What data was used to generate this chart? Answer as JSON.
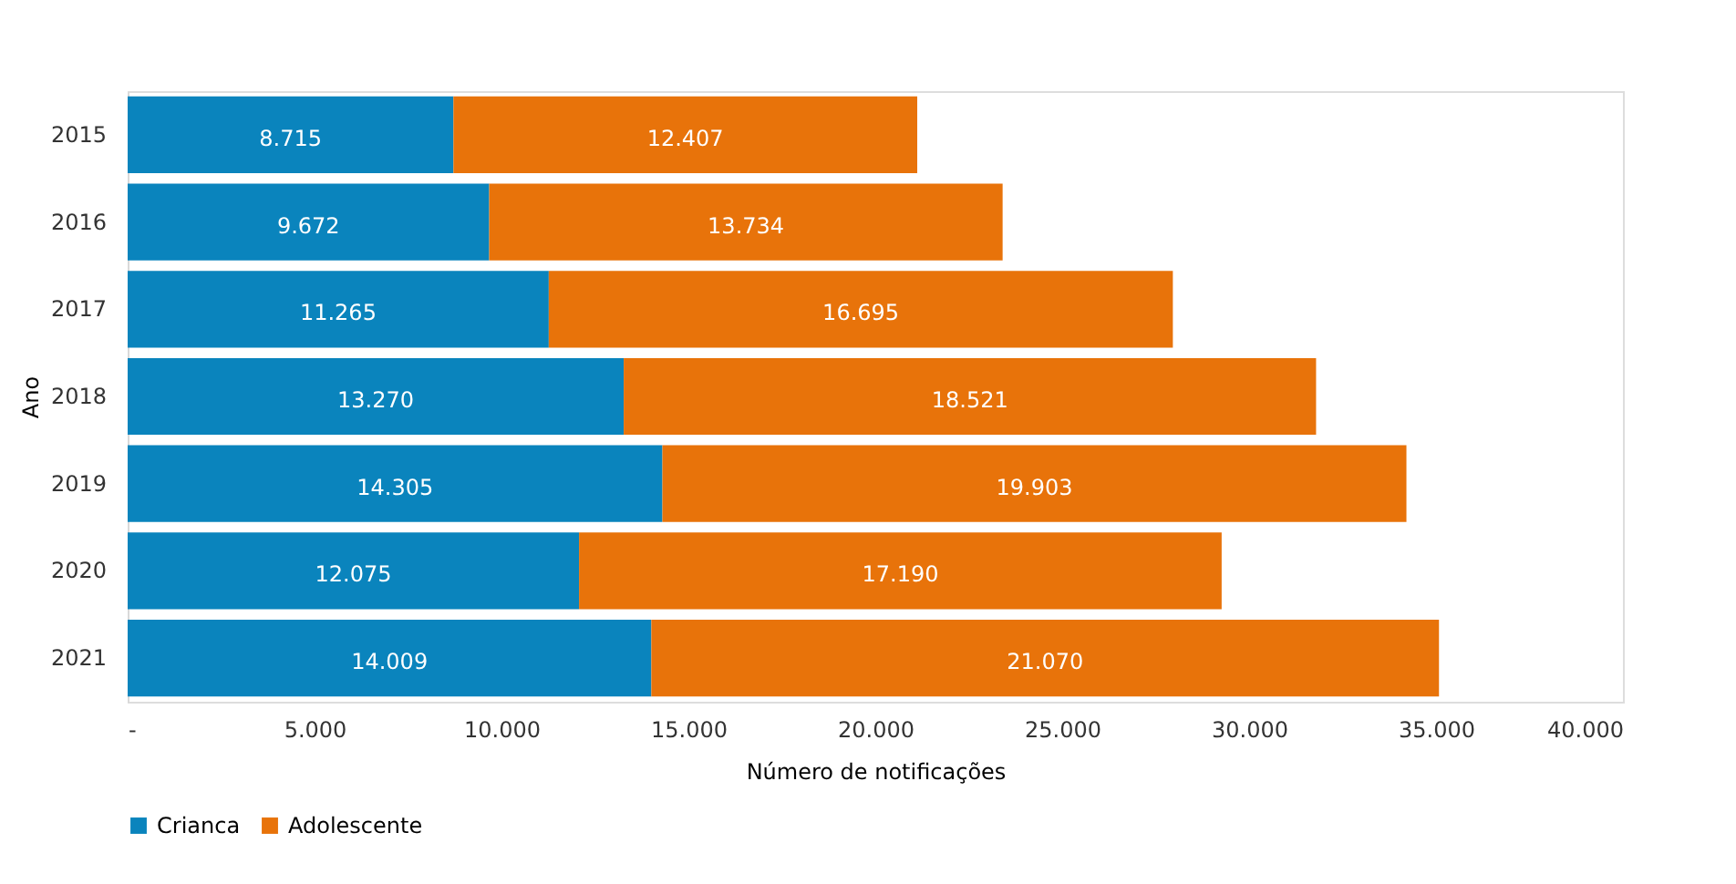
{
  "chart_data": {
    "type": "bar",
    "orientation": "horizontal",
    "stacked": true,
    "categories": [
      "2015",
      "2016",
      "2017",
      "2018",
      "2019",
      "2020",
      "2021"
    ],
    "series": [
      {
        "name": "Crianca",
        "color": "#0a84bd",
        "values": [
          8715,
          9672,
          11265,
          13270,
          14305,
          12075,
          14009
        ],
        "value_labels": [
          "8.715",
          "9.672",
          "11.265",
          "13.270",
          "14.305",
          "12.075",
          "14.009"
        ]
      },
      {
        "name": "Adolescente",
        "color": "#e8730a",
        "values": [
          12407,
          13734,
          16695,
          18521,
          19903,
          17190,
          21070
        ],
        "value_labels": [
          "12.407",
          "13.734",
          "16.695",
          "18.521",
          "19.903",
          "17.190",
          "21.070"
        ]
      }
    ],
    "xlabel": "Número de notificações",
    "ylabel": "Ano",
    "xlim": [
      0,
      40000
    ],
    "xticks": [
      {
        "value": 0,
        "label": "-"
      },
      {
        "value": 5000,
        "label": "5.000"
      },
      {
        "value": 10000,
        "label": "10.000"
      },
      {
        "value": 15000,
        "label": "15.000"
      },
      {
        "value": 20000,
        "label": "20.000"
      },
      {
        "value": 25000,
        "label": "25.000"
      },
      {
        "value": 30000,
        "label": "30.000"
      },
      {
        "value": 35000,
        "label": "35.000"
      },
      {
        "value": 40000,
        "label": "40.000"
      }
    ],
    "grid": false,
    "legend": "bottom"
  }
}
